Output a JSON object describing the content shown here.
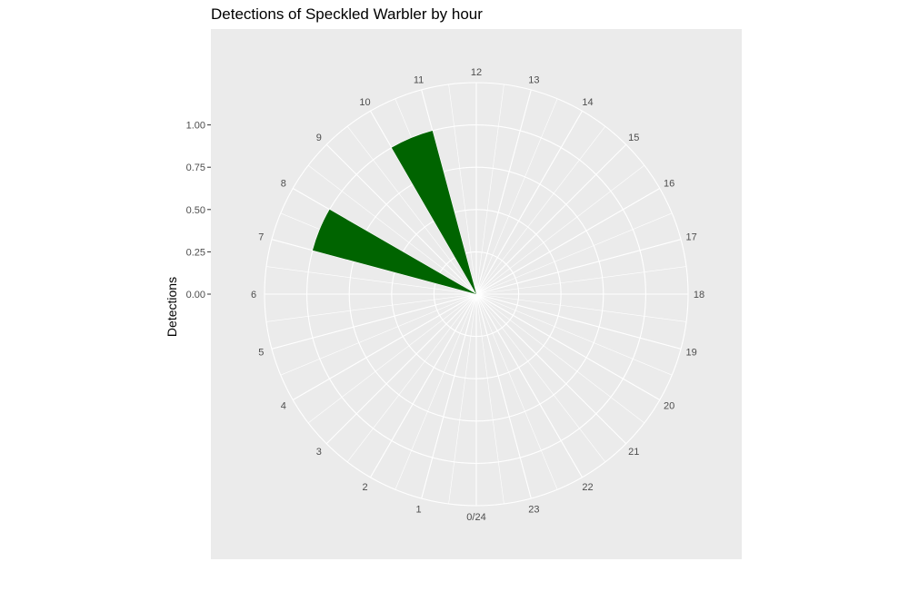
{
  "chart_data": {
    "type": "bar",
    "coordinate_system": "polar",
    "title": "Detections of Speckled Warbler by hour",
    "xlabel": "",
    "ylabel": "Detections",
    "hours": [
      "0/24",
      "1",
      "2",
      "3",
      "4",
      "5",
      "6",
      "7",
      "8",
      "9",
      "10",
      "11",
      "12",
      "13",
      "14",
      "15",
      "16",
      "17",
      "18",
      "19",
      "20",
      "21",
      "22",
      "23"
    ],
    "y_ticks": [
      "0.00",
      "0.25",
      "0.50",
      "0.75",
      "1.00"
    ],
    "ylim": [
      0,
      1.25
    ],
    "bar_width_hours": 1,
    "series": [
      {
        "bars": [
          {
            "hour_start": 7,
            "hour_end": 8,
            "value": 1.0
          },
          {
            "hour_start": 10,
            "hour_end": 11,
            "value": 1.0
          }
        ]
      }
    ],
    "bar_color": "#006400",
    "panel_background": "#ebebeb",
    "grid_color": "#ffffff",
    "grid": true
  }
}
